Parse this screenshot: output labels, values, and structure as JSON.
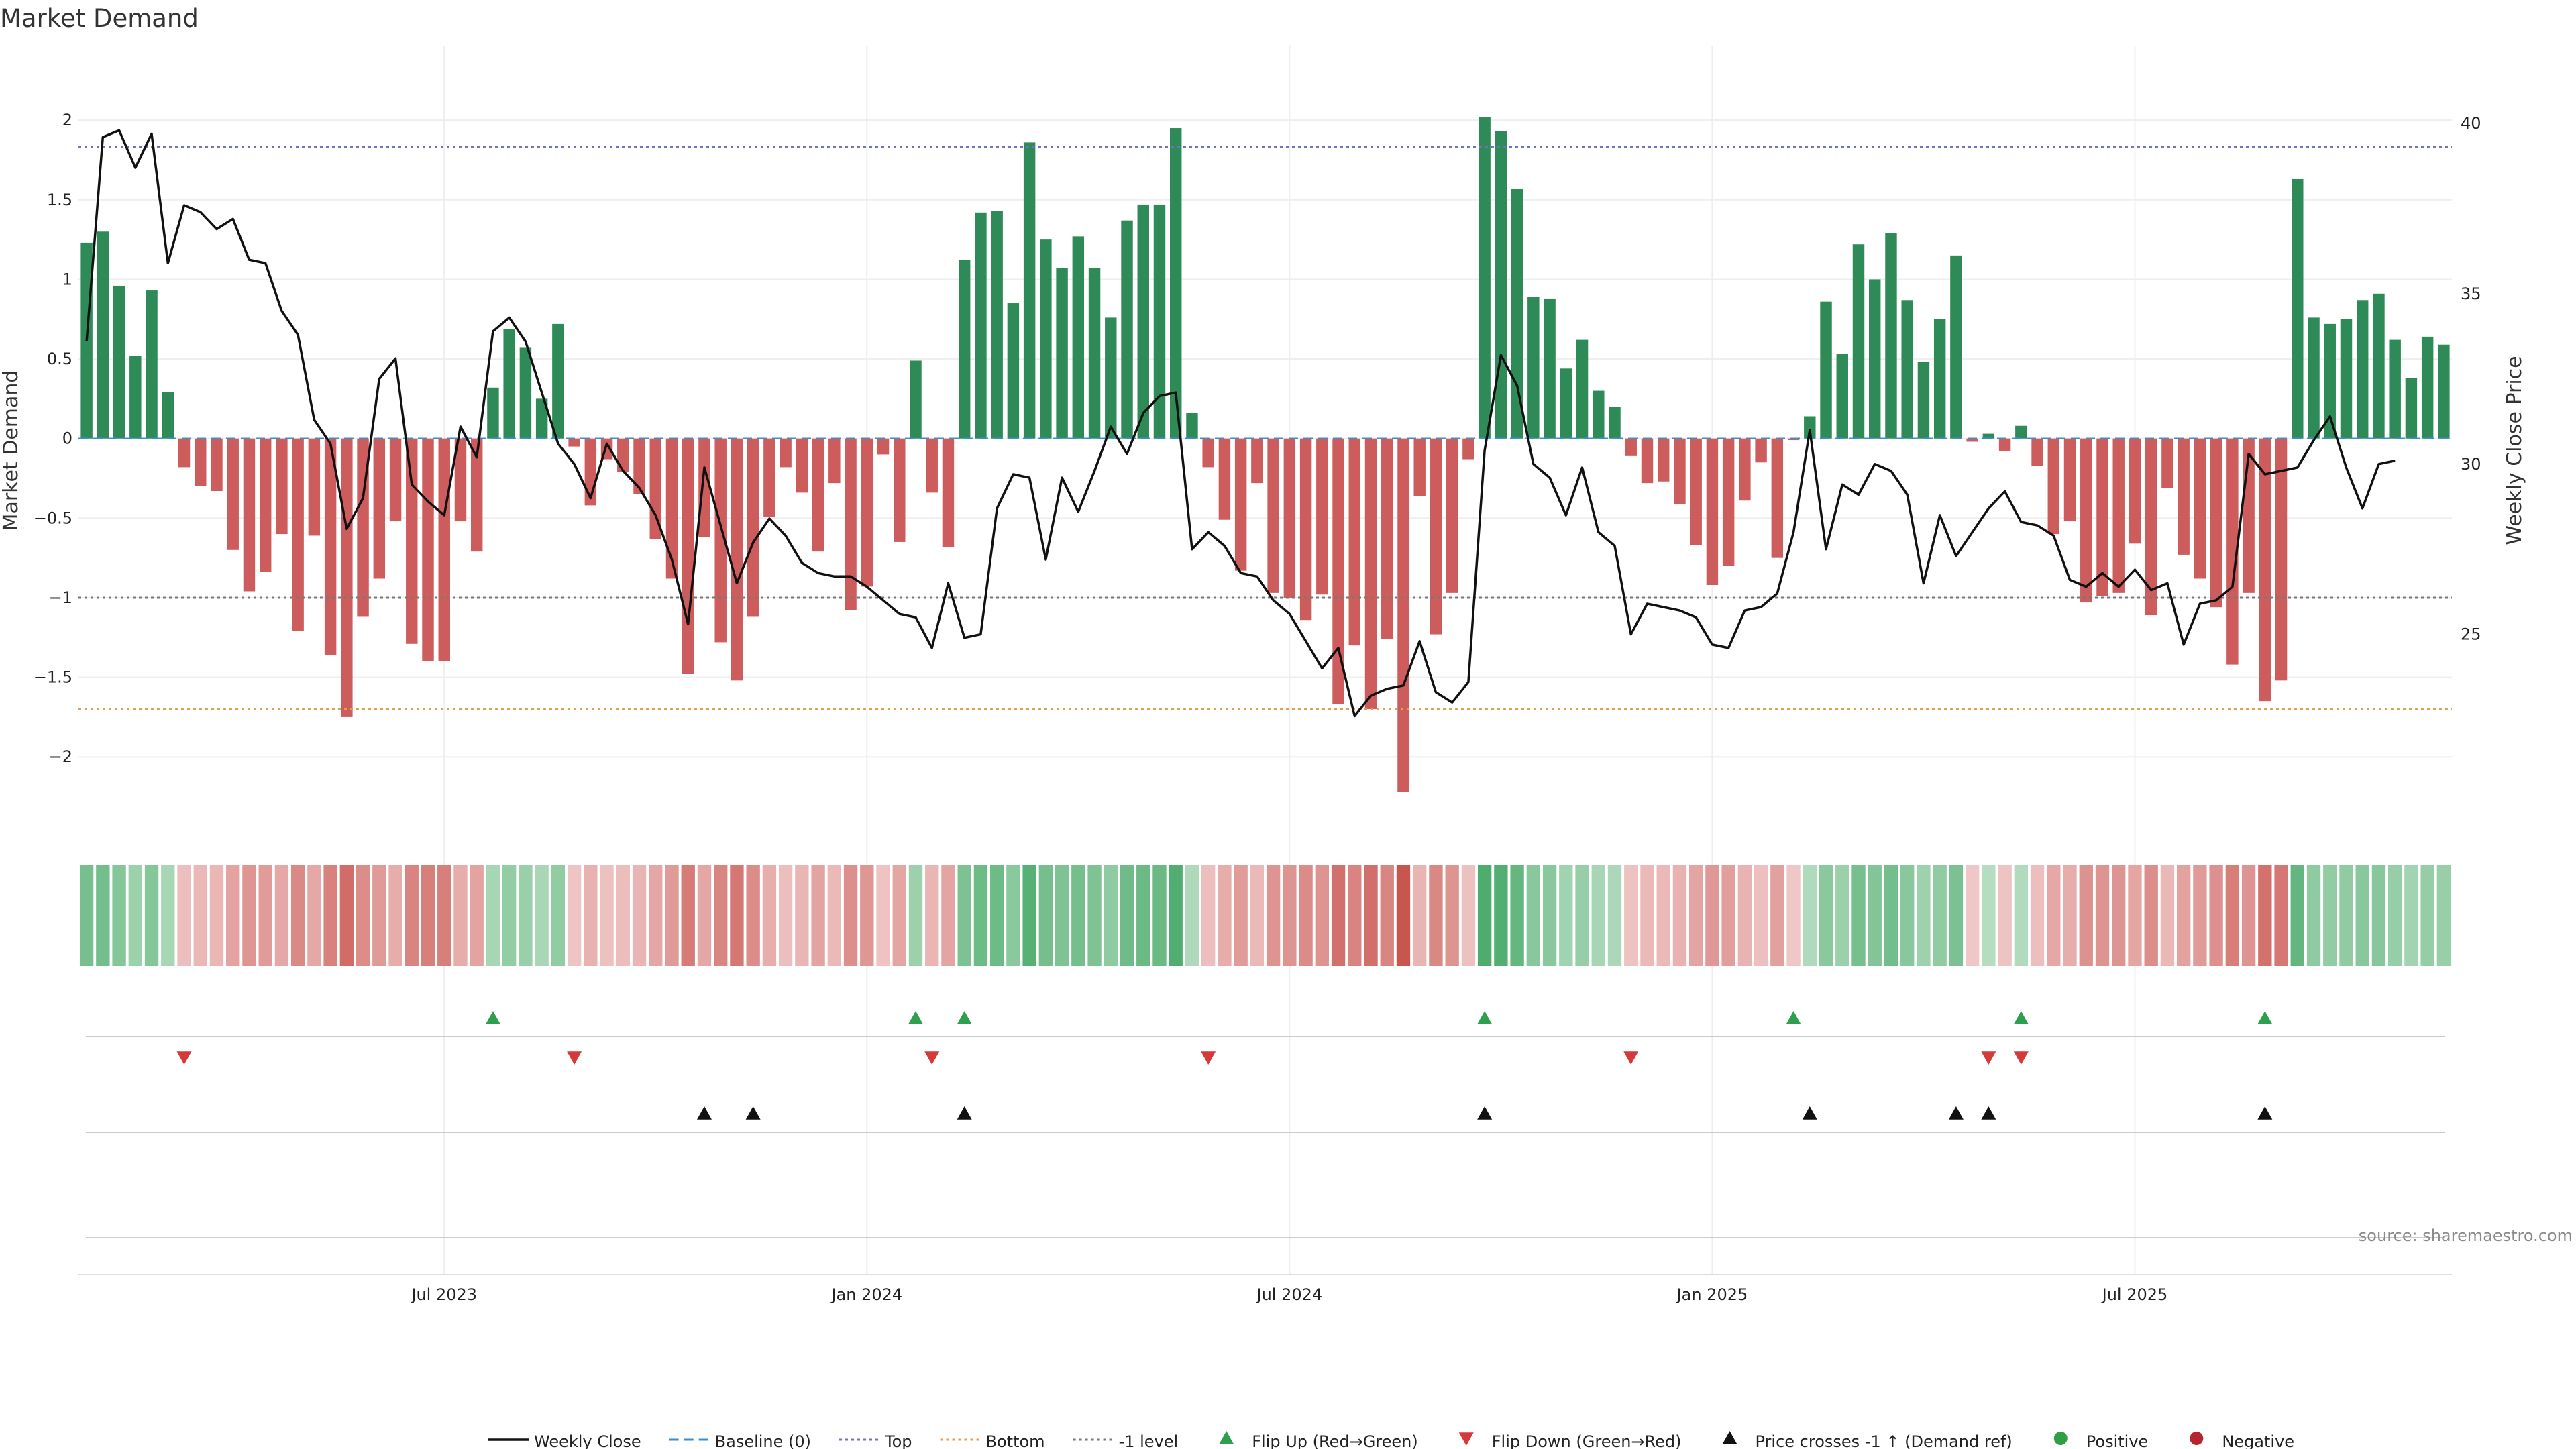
{
  "title": "Market Demand",
  "source": "source: sharemaestro.com",
  "colors": {
    "positive": "#2e8b57",
    "negative": "#cd5c5c",
    "price": "#111111",
    "top": "#7070c0",
    "bottom": "#e0a050",
    "minus1": "#777777",
    "baseline": "#3b8fd0",
    "flip_up": "#2e9e4f",
    "flip_down": "#d43a3a",
    "cross": "#111111",
    "pos_dot": "#2f9e44",
    "neg_dot": "#b3262f"
  },
  "chart_data": {
    "type": "bar",
    "title": "Market Demand",
    "ylabel": "Market Demand",
    "y2label": "Weekly Close Price",
    "ylim": [
      -2.45,
      2.3
    ],
    "y2lim": [
      19.3,
      41.5
    ],
    "yticks": [
      {
        "v": 2,
        "label": "2"
      },
      {
        "v": 1.5,
        "label": "1.5"
      },
      {
        "v": 1,
        "label": "1"
      },
      {
        "v": 0.5,
        "label": "0.5"
      },
      {
        "v": 0,
        "label": "0"
      },
      {
        "v": -0.5,
        "label": "−0.5"
      },
      {
        "v": -1,
        "label": "−1"
      },
      {
        "v": -1.5,
        "label": "−1.5"
      },
      {
        "v": -2,
        "label": "−2"
      }
    ],
    "y2ticks": [
      {
        "v": 40,
        "label": "40"
      },
      {
        "v": 35,
        "label": "35"
      },
      {
        "v": 30,
        "label": "30"
      },
      {
        "v": 25,
        "label": "25"
      }
    ],
    "xticks": [
      {
        "i": 22,
        "label": "Jul 2023"
      },
      {
        "i": 48,
        "label": "Jan 2024"
      },
      {
        "i": 74,
        "label": "Jul 2024"
      },
      {
        "i": 100,
        "label": "Jan 2025"
      },
      {
        "i": 126,
        "label": "Jul 2025"
      }
    ],
    "levels": {
      "top": 1.83,
      "bottom": -1.7,
      "minus1": -1.0,
      "baseline": 0
    },
    "demand": [
      1.23,
      1.3,
      0.96,
      0.52,
      0.93,
      0.29,
      -0.18,
      -0.3,
      -0.33,
      -0.7,
      -0.96,
      -0.84,
      -0.6,
      -1.21,
      -0.61,
      -1.36,
      -1.75,
      -1.12,
      -0.88,
      -0.52,
      -1.29,
      -1.4,
      -1.4,
      -0.52,
      -0.71,
      0.32,
      0.69,
      0.57,
      0.25,
      0.72,
      -0.05,
      -0.42,
      -0.13,
      -0.21,
      -0.35,
      -0.63,
      -0.88,
      -1.48,
      -0.62,
      -1.28,
      -1.52,
      -1.12,
      -0.49,
      -0.18,
      -0.34,
      -0.71,
      -0.28,
      -1.08,
      -0.93,
      -0.1,
      -0.65,
      0.49,
      -0.34,
      -0.68,
      1.12,
      1.42,
      1.43,
      0.85,
      1.86,
      1.25,
      1.07,
      1.27,
      1.07,
      0.76,
      1.37,
      1.47,
      1.47,
      1.95,
      0.16,
      -0.18,
      -0.51,
      -0.83,
      -0.28,
      -0.97,
      -1.0,
      -1.14,
      -0.98,
      -1.67,
      -1.3,
      -1.7,
      -1.26,
      -2.22,
      -0.36,
      -1.23,
      -0.97,
      -0.13,
      2.02,
      1.93,
      1.57,
      0.89,
      0.88,
      0.44,
      0.62,
      0.3,
      0.2,
      -0.11,
      -0.28,
      -0.27,
      -0.41,
      -0.67,
      -0.92,
      -0.8,
      -0.39,
      -0.15,
      -0.75,
      -0.01,
      0.14,
      0.86,
      0.53,
      1.22,
      1.0,
      1.29,
      0.87,
      0.48,
      0.75,
      1.15,
      -0.02,
      0.03,
      -0.08,
      0.08,
      -0.17,
      -0.6,
      -0.52,
      -1.03,
      -0.99,
      -0.97,
      -0.66,
      -1.11,
      -0.31,
      -0.73,
      -0.88,
      -1.06,
      -1.42,
      -0.97,
      -1.65,
      -1.52,
      1.63,
      0.76,
      0.72,
      0.75,
      0.87,
      0.91,
      0.62,
      0.38,
      0.64,
      0.59
    ],
    "price": [
      33.6,
      39.6,
      39.8,
      38.7,
      39.7,
      35.9,
      37.6,
      37.4,
      36.9,
      37.2,
      36.0,
      35.9,
      34.5,
      33.8,
      31.3,
      30.6,
      28.1,
      29.0,
      32.5,
      33.1,
      29.4,
      28.9,
      28.5,
      31.1,
      30.2,
      33.9,
      34.3,
      33.6,
      32.1,
      30.6,
      30.0,
      29.0,
      30.6,
      29.8,
      29.3,
      28.5,
      27.2,
      25.3,
      29.9,
      28.2,
      26.5,
      27.7,
      28.4,
      27.9,
      27.1,
      26.8,
      26.7,
      26.7,
      26.4,
      26.0,
      25.6,
      25.5,
      24.6,
      26.5,
      24.9,
      25.0,
      28.7,
      29.7,
      29.6,
      27.2,
      29.6,
      28.6,
      29.8,
      31.1,
      30.3,
      31.5,
      32.0,
      32.1,
      27.5,
      28.0,
      27.6,
      26.8,
      26.7,
      26.0,
      25.6,
      24.8,
      24.0,
      24.6,
      22.6,
      23.2,
      23.4,
      23.5,
      24.8,
      23.3,
      23.0,
      23.6,
      30.4,
      33.2,
      32.3,
      30.0,
      29.6,
      28.5,
      29.9,
      28.0,
      27.6,
      25.0,
      25.9,
      25.8,
      25.7,
      25.5,
      24.7,
      24.6,
      25.7,
      25.8,
      26.2,
      28.0,
      31.0,
      27.5,
      29.4,
      29.1,
      30.0,
      29.8,
      29.1,
      26.5,
      28.5,
      27.3,
      28.0,
      28.7,
      29.2,
      28.3,
      28.2,
      27.9,
      26.6,
      26.4,
      26.8,
      26.4,
      26.9,
      26.3,
      26.5,
      24.7,
      25.9,
      26.0,
      26.4,
      30.3,
      29.7,
      29.8,
      29.9,
      30.7,
      31.4,
      29.9,
      28.7,
      30.0,
      30.1
    ],
    "flip_up_idx": [
      25,
      51,
      54,
      86,
      105,
      119,
      134
    ],
    "flip_down_idx": [
      6,
      30,
      52,
      69,
      95,
      117,
      119
    ],
    "cross_idx": [
      38,
      41,
      54,
      86,
      106,
      115,
      117,
      134
    ]
  },
  "legend": [
    {
      "kind": "line",
      "label": "Weekly Close"
    },
    {
      "kind": "dash",
      "label": "Baseline (0)"
    },
    {
      "kind": "dot-top",
      "label": "Top"
    },
    {
      "kind": "dot-bottom",
      "label": "Bottom"
    },
    {
      "kind": "dot-minus1",
      "label": "-1 level"
    },
    {
      "kind": "tri-up",
      "label": "Flip Up (Red→Green)"
    },
    {
      "kind": "tri-down",
      "label": "Flip Down (Green→Red)"
    },
    {
      "kind": "tri-cross",
      "label": "Price crosses -1 ↑ (Demand ref)"
    },
    {
      "kind": "dot-pos",
      "label": "Positive"
    },
    {
      "kind": "dot-neg",
      "label": "Negative"
    }
  ]
}
